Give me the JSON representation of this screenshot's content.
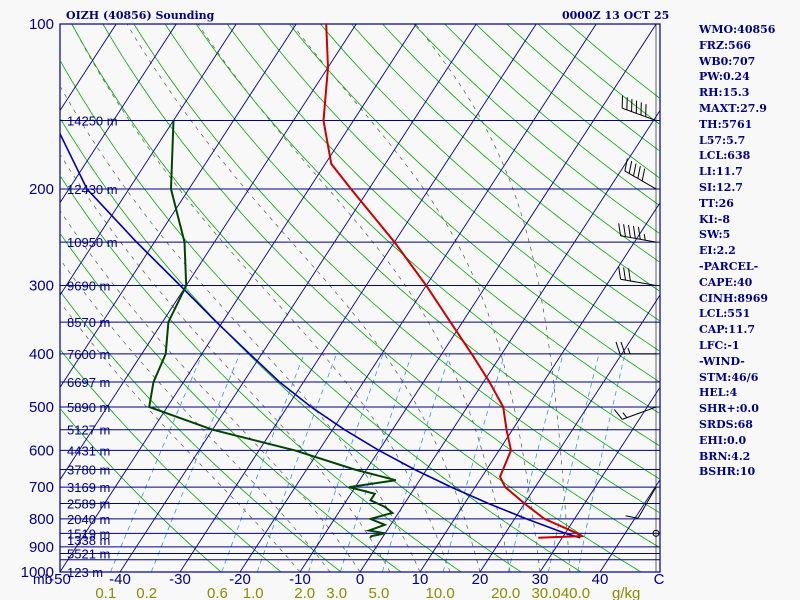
{
  "header": {
    "station": "OIZH (40856) Sounding",
    "datetime": "0000Z 13 OCT 25"
  },
  "indices": [
    "WMO:40856",
    "FRZ:566",
    "WB0:707",
    "PW:0.24",
    "RH:15.3",
    "MAXT:27.9",
    "TH:5761",
    "L57:5.7",
    "LCL:638",
    "LI:11.7",
    "SI:12.7",
    "TT:26",
    "KI:-8",
    "SW:5",
    "EI:2.2",
    "-PARCEL-",
    "CAPE:40",
    "CINH:8969",
    "LCL:551",
    "CAP:11.7",
    "LFC:-1",
    "-WIND-",
    "STM:46/6",
    "HEL:4",
    "SHR+:0.0",
    "SRDS:68",
    "EHI:0.0",
    "BRN:4.2",
    "BSHR:10"
  ],
  "colors": {
    "frame": "#00008b",
    "isobar": "#00008b",
    "isotherm": "#00008b",
    "dry_adiabat": "#00aa00",
    "moist_adiabat": "#00aa00",
    "mixing_ratio": "#3399dd",
    "hatch": "#555555",
    "temperature": "#cc0000",
    "dewpoint": "#004400",
    "parcel": "#0000aa",
    "secondary_labels": "#8b8b00",
    "wind_barbs": "#000000"
  },
  "chart_data": {
    "type": "skew-t",
    "pressure_range": [
      1000,
      100
    ],
    "temperature_range": [
      -50,
      50
    ],
    "pressure_labels": [
      "100",
      "200",
      "300",
      "400",
      "500",
      "600",
      "700",
      "800",
      "900",
      "1000"
    ],
    "pressure_levels": [
      100,
      200,
      300,
      400,
      500,
      600,
      700,
      800,
      900,
      1000
    ],
    "temperature_ticks": [
      -50,
      -40,
      -30,
      -20,
      -10,
      0,
      10,
      20,
      30,
      40,
      50
    ],
    "temperature_tick_labels": [
      "-50",
      "-40",
      "-30",
      "-20",
      "-10",
      "0",
      "10",
      "20",
      "30",
      "40"
    ],
    "mb_label": "mb",
    "corner_label": "C",
    "height_labels": [
      {
        "p": 150,
        "t": "14250 m"
      },
      {
        "p": 200,
        "t": "12430 m"
      },
      {
        "p": 250,
        "t": "10950 m"
      },
      {
        "p": 300,
        "t": "9690 m"
      },
      {
        "p": 350,
        "t": "8570 m"
      },
      {
        "p": 400,
        "t": "7600 m"
      },
      {
        "p": 450,
        "t": "6697 m"
      },
      {
        "p": 500,
        "t": "5890 m"
      },
      {
        "p": 550,
        "t": "5127 m"
      },
      {
        "p": 600,
        "t": "4431 m"
      },
      {
        "p": 650,
        "t": "3780 m"
      },
      {
        "p": 700,
        "t": "3169 m"
      },
      {
        "p": 750,
        "t": "2589 m"
      },
      {
        "p": 800,
        "t": "2040 m"
      },
      {
        "p": 850,
        "t": "1519 m"
      },
      {
        "p": 875,
        "t": "1338 m"
      },
      {
        "p": 925,
        "t": "5521 m"
      },
      {
        "p": 1000,
        "t": "123 m"
      }
    ],
    "mixing_ratio_labels": [
      {
        "w": 0.1,
        "t": "0.1"
      },
      {
        "w": 0.2,
        "t": "0.2"
      },
      {
        "w": 0.6,
        "t": "0.6"
      },
      {
        "w": 1.0,
        "t": "1.0"
      },
      {
        "w": 2.0,
        "t": "2.0"
      },
      {
        "w": 3.0,
        "t": "3.0"
      },
      {
        "w": 5.0,
        "t": "5.0"
      },
      {
        "w": 10.0,
        "t": "10.0"
      },
      {
        "w": 20.0,
        "t": "20.0"
      },
      {
        "w": 30.0,
        "t": "30.0"
      },
      {
        "w": 40.0,
        "t": "40.0"
      }
    ],
    "mixing_ratio_unit": "g/kg",
    "dry_adiabats_K": [
      250,
      260,
      270,
      280,
      290,
      300,
      310,
      320,
      330,
      340,
      350,
      360,
      370,
      380,
      390,
      400,
      410,
      420,
      430,
      440,
      450,
      460,
      470,
      480
    ],
    "moist_adiabats_C": [
      -10,
      -5,
      0,
      5,
      10,
      15,
      20,
      25,
      30,
      35
    ],
    "temperature_profile": [
      [
        866,
        26
      ],
      [
        860,
        33
      ],
      [
        850,
        32
      ],
      [
        800,
        25
      ],
      [
        750,
        20
      ],
      [
        700,
        15
      ],
      [
        670,
        13
      ],
      [
        600,
        12
      ],
      [
        550,
        9
      ],
      [
        500,
        6
      ],
      [
        450,
        1
      ],
      [
        400,
        -5
      ],
      [
        350,
        -12
      ],
      [
        300,
        -20
      ],
      [
        250,
        -30
      ],
      [
        200,
        -43
      ],
      [
        180,
        -49
      ],
      [
        150,
        -55
      ],
      [
        120,
        -60
      ],
      [
        100,
        -65
      ]
    ],
    "dewpoint_profile": [
      [
        866,
        -2
      ],
      [
        860,
        -2
      ],
      [
        850,
        0
      ],
      [
        840,
        -3
      ],
      [
        820,
        -1
      ],
      [
        800,
        -4
      ],
      [
        780,
        -1
      ],
      [
        760,
        -3
      ],
      [
        740,
        -6
      ],
      [
        720,
        -6
      ],
      [
        700,
        -11
      ],
      [
        680,
        -4
      ],
      [
        650,
        -12
      ],
      [
        600,
        -24
      ],
      [
        550,
        -40
      ],
      [
        500,
        -53
      ],
      [
        450,
        -55
      ],
      [
        400,
        -56
      ],
      [
        350,
        -59
      ],
      [
        300,
        -60
      ],
      [
        250,
        -65
      ],
      [
        200,
        -73
      ],
      [
        150,
        -80
      ]
    ],
    "parcel_profile": [
      [
        866,
        33
      ],
      [
        850,
        30
      ],
      [
        800,
        22
      ],
      [
        750,
        14
      ],
      [
        700,
        6
      ],
      [
        650,
        -2
      ],
      [
        600,
        -10
      ],
      [
        550,
        -18
      ],
      [
        500,
        -26
      ],
      [
        450,
        -34
      ],
      [
        400,
        -42
      ],
      [
        350,
        -51
      ],
      [
        300,
        -61
      ],
      [
        250,
        -73
      ],
      [
        200,
        -87
      ],
      [
        150,
        -100
      ],
      [
        115,
        -110
      ]
    ],
    "wind_barbs": [
      {
        "p": 150,
        "dir": 290,
        "spd": 60
      },
      {
        "p": 200,
        "dir": 300,
        "spd": 50
      },
      {
        "p": 250,
        "dir": 280,
        "spd": 55
      },
      {
        "p": 300,
        "dir": 280,
        "spd": 30
      },
      {
        "p": 400,
        "dir": 270,
        "spd": 25
      },
      {
        "p": 500,
        "dir": 250,
        "spd": 15
      },
      {
        "p": 700,
        "dir": 210,
        "spd": 10
      },
      {
        "p": 850,
        "dir": 0,
        "spd": 0
      }
    ]
  }
}
